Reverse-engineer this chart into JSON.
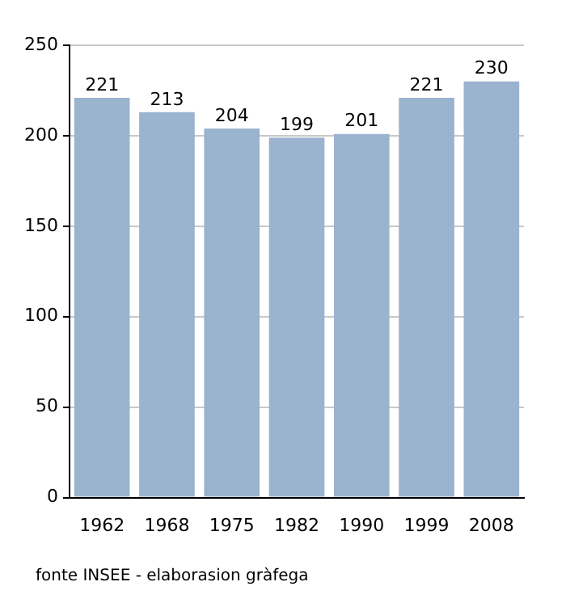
{
  "chart_data": {
    "type": "bar",
    "categories": [
      "1962",
      "1968",
      "1975",
      "1982",
      "1990",
      "1999",
      "2008"
    ],
    "values": [
      221,
      213,
      204,
      199,
      201,
      221,
      230
    ],
    "color": "#9ab3cf",
    "ylim": [
      0,
      250
    ],
    "yticks": [
      0,
      50,
      100,
      150,
      200,
      250
    ],
    "grid": "y",
    "data_labels": true,
    "annotations": [
      "fonte INSEE - elaborasion gràfega"
    ]
  }
}
